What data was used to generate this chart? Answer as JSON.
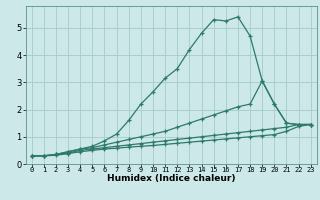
{
  "title": "",
  "xlabel": "Humidex (Indice chaleur)",
  "ylabel": "",
  "bg_color": "#cce8e8",
  "line_color": "#2d7a6a",
  "grid_color": "#aacece",
  "xlim": [
    -0.5,
    23.5
  ],
  "ylim": [
    0,
    5.8
  ],
  "xticks": [
    0,
    1,
    2,
    3,
    4,
    5,
    6,
    7,
    8,
    9,
    10,
    11,
    12,
    13,
    14,
    15,
    16,
    17,
    18,
    19,
    20,
    21,
    22,
    23
  ],
  "yticks": [
    0,
    1,
    2,
    3,
    4,
    5
  ],
  "series": [
    {
      "x": [
        0,
        1,
        2,
        3,
        4,
        5,
        6,
        7,
        8,
        9,
        10,
        11,
        12,
        13,
        14,
        15,
        16,
        17,
        18,
        19,
        20,
        21,
        22,
        23
      ],
      "y": [
        0.3,
        0.3,
        0.35,
        0.45,
        0.55,
        0.65,
        0.85,
        1.1,
        1.6,
        2.2,
        2.65,
        3.15,
        3.5,
        4.2,
        4.8,
        5.3,
        5.25,
        5.4,
        4.7,
        3.05,
        2.2,
        1.5,
        1.45,
        1.45
      ]
    },
    {
      "x": [
        0,
        1,
        2,
        3,
        4,
        5,
        6,
        7,
        8,
        9,
        10,
        11,
        12,
        13,
        14,
        15,
        16,
        17,
        18,
        19,
        20,
        21,
        22,
        23
      ],
      "y": [
        0.3,
        0.3,
        0.35,
        0.45,
        0.55,
        0.6,
        0.7,
        0.8,
        0.9,
        1.0,
        1.1,
        1.2,
        1.35,
        1.5,
        1.65,
        1.8,
        1.95,
        2.1,
        2.2,
        3.05,
        2.2,
        1.5,
        1.45,
        1.45
      ]
    },
    {
      "x": [
        0,
        1,
        2,
        3,
        4,
        5,
        6,
        7,
        8,
        9,
        10,
        11,
        12,
        13,
        14,
        15,
        16,
        17,
        18,
        19,
        20,
        21,
        22,
        23
      ],
      "y": [
        0.3,
        0.3,
        0.35,
        0.4,
        0.5,
        0.55,
        0.6,
        0.65,
        0.7,
        0.75,
        0.8,
        0.85,
        0.9,
        0.95,
        1.0,
        1.05,
        1.1,
        1.15,
        1.2,
        1.25,
        1.3,
        1.35,
        1.45,
        1.45
      ]
    },
    {
      "x": [
        0,
        1,
        2,
        3,
        4,
        5,
        6,
        7,
        8,
        9,
        10,
        11,
        12,
        13,
        14,
        15,
        16,
        17,
        18,
        19,
        20,
        21,
        22,
        23
      ],
      "y": [
        0.3,
        0.3,
        0.32,
        0.38,
        0.45,
        0.5,
        0.55,
        0.58,
        0.62,
        0.65,
        0.68,
        0.72,
        0.76,
        0.8,
        0.84,
        0.88,
        0.92,
        0.96,
        1.0,
        1.04,
        1.08,
        1.2,
        1.38,
        1.45
      ]
    }
  ]
}
